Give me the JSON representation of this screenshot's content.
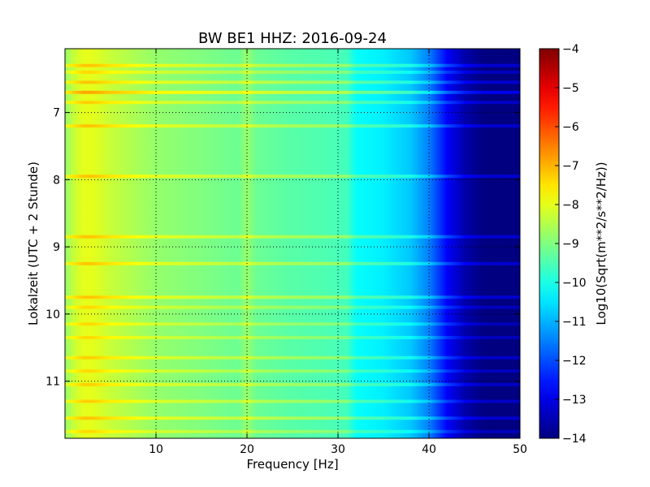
{
  "chart_data": {
    "type": "heatmap",
    "title": "BW BE1 HHZ: 2016-09-24",
    "xlabel": "Frequency [Hz]",
    "ylabel": "Lokalzeit (UTC + 2 Stunde)",
    "colorbar_label": "Log10(Sqrt(m**2/s**2/Hz))",
    "xlim": [
      0,
      50
    ],
    "ylim": [
      11.85,
      6.05
    ],
    "y_inverted": true,
    "x_ticks": [
      10,
      20,
      30,
      40,
      50
    ],
    "x_tick_labels": [
      "10",
      "20",
      "30",
      "40",
      "50"
    ],
    "y_ticks": [
      7,
      8,
      9,
      10,
      11
    ],
    "y_tick_labels": [
      "7",
      "8",
      "9",
      "10",
      "11"
    ],
    "colorbar_range": [
      -14,
      -4
    ],
    "colorbar_ticks": [
      -4,
      -5,
      -6,
      -7,
      -8,
      -9,
      -10,
      -11,
      -12,
      -13,
      -14
    ],
    "colorbar_tick_labels": [
      "−4",
      "−5",
      "−6",
      "−7",
      "−8",
      "−9",
      "−10",
      "−11",
      "−12",
      "−13",
      "−14"
    ],
    "colormap": "jet",
    "grid": true,
    "frequency_profile": {
      "frequency_hz": [
        0,
        1,
        2,
        3,
        5,
        8,
        10,
        15,
        19,
        20,
        21,
        25,
        29,
        31,
        32,
        35,
        38,
        40,
        42,
        44,
        46,
        48,
        50
      ],
      "log10_amplitude": [
        -8.8,
        -8.3,
        -8.0,
        -8.0,
        -8.3,
        -8.6,
        -8.8,
        -9.0,
        -9.2,
        -8.8,
        -9.2,
        -9.4,
        -9.5,
        -9.6,
        -10.2,
        -10.4,
        -10.8,
        -11.5,
        -12.8,
        -13.6,
        -14.0,
        -14.0,
        -14.0
      ]
    },
    "high_noise_bands_hours": [
      {
        "time": 6.3,
        "offset": 0.8
      },
      {
        "time": 6.4,
        "offset": 0.6
      },
      {
        "time": 6.55,
        "offset": 0.8
      },
      {
        "time": 6.7,
        "offset": 1.1
      },
      {
        "time": 6.85,
        "offset": 0.7
      },
      {
        "time": 7.2,
        "offset": 0.8
      },
      {
        "time": 7.95,
        "offset": 0.8
      },
      {
        "time": 8.85,
        "offset": 0.8
      },
      {
        "time": 9.25,
        "offset": 0.8
      },
      {
        "time": 9.75,
        "offset": 0.8
      },
      {
        "time": 9.9,
        "offset": 0.6
      },
      {
        "time": 10.15,
        "offset": 0.6
      },
      {
        "time": 10.35,
        "offset": 0.6
      },
      {
        "time": 10.65,
        "offset": 0.7
      },
      {
        "time": 10.85,
        "offset": 0.6
      },
      {
        "time": 11.05,
        "offset": 0.7
      },
      {
        "time": 11.3,
        "offset": 0.7
      },
      {
        "time": 11.55,
        "offset": 0.8
      },
      {
        "time": 11.75,
        "offset": 0.6
      }
    ]
  }
}
